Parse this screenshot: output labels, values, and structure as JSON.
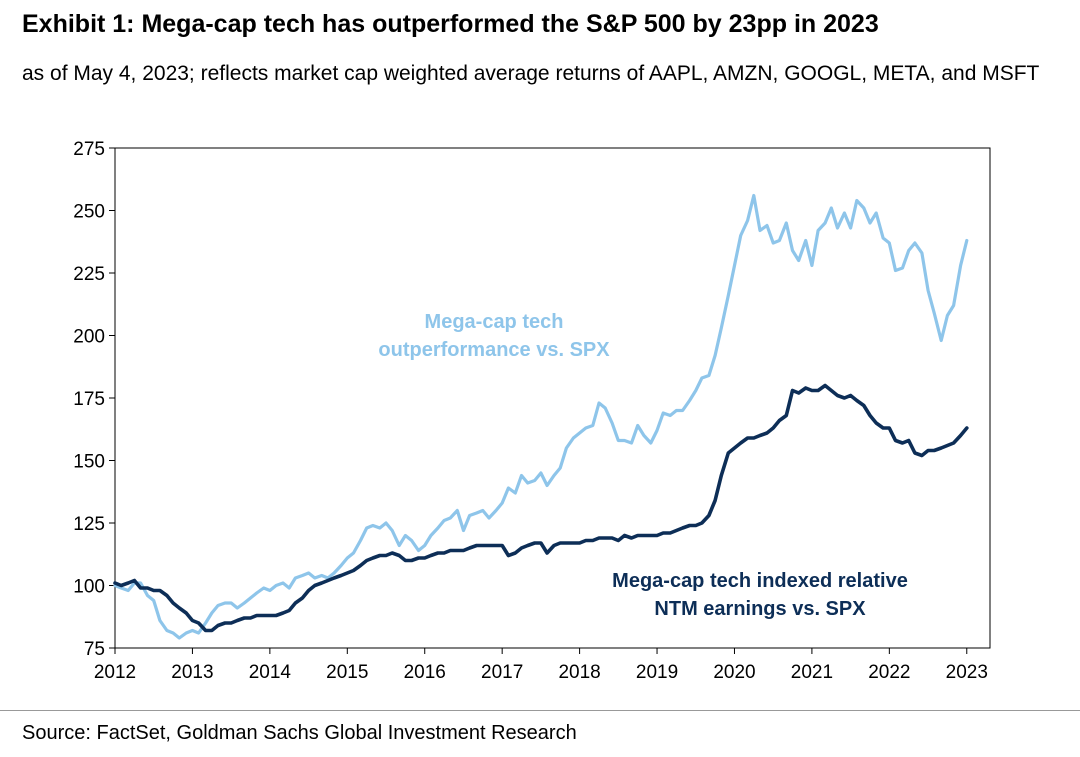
{
  "title": "Exhibit 1: Mega-cap tech has outperformed the S&P 500 by 23pp in 2023",
  "subtitle": "as of May 4, 2023; reflects market cap weighted average returns of AAPL, AMZN, GOOGL, META, and MSFT",
  "source": "Source: FactSet, Goldman Sachs Global Investment Research",
  "chart_data": {
    "type": "line",
    "xlim": [
      2012,
      2023.3
    ],
    "ylim": [
      75,
      275
    ],
    "x_ticks": [
      "2012",
      "2013",
      "2014",
      "2015",
      "2016",
      "2017",
      "2018",
      "2019",
      "2020",
      "2021",
      "2022",
      "2023"
    ],
    "y_ticks": [
      "75",
      "100",
      "125",
      "150",
      "175",
      "200",
      "225",
      "250",
      "275"
    ],
    "colors": {
      "light": "#8ec5ea",
      "dark": "#0d2e57"
    },
    "annotations": [
      {
        "lines": [
          "Mega-cap tech",
          "outperformance vs. SPX"
        ],
        "series": 0
      },
      {
        "lines": [
          "Mega-cap tech indexed relative",
          "NTM earnings vs. SPX"
        ],
        "series": 1
      }
    ],
    "series": [
      {
        "name": "Mega-cap tech outperformance vs. SPX",
        "x": [
          2012.0,
          2012.08,
          2012.17,
          2012.25,
          2012.33,
          2012.42,
          2012.5,
          2012.58,
          2012.67,
          2012.75,
          2012.83,
          2012.92,
          2013.0,
          2013.08,
          2013.17,
          2013.25,
          2013.33,
          2013.42,
          2013.5,
          2013.58,
          2013.67,
          2013.75,
          2013.83,
          2013.92,
          2014.0,
          2014.08,
          2014.17,
          2014.25,
          2014.33,
          2014.42,
          2014.5,
          2014.58,
          2014.67,
          2014.75,
          2014.83,
          2014.92,
          2015.0,
          2015.08,
          2015.17,
          2015.25,
          2015.33,
          2015.42,
          2015.5,
          2015.58,
          2015.67,
          2015.75,
          2015.83,
          2015.92,
          2016.0,
          2016.08,
          2016.17,
          2016.25,
          2016.33,
          2016.42,
          2016.5,
          2016.58,
          2016.67,
          2016.75,
          2016.83,
          2016.92,
          2017.0,
          2017.08,
          2017.17,
          2017.25,
          2017.33,
          2017.42,
          2017.5,
          2017.58,
          2017.67,
          2017.75,
          2017.83,
          2017.92,
          2018.0,
          2018.08,
          2018.17,
          2018.25,
          2018.33,
          2018.42,
          2018.5,
          2018.58,
          2018.67,
          2018.75,
          2018.83,
          2018.92,
          2019.0,
          2019.08,
          2019.17,
          2019.25,
          2019.33,
          2019.42,
          2019.5,
          2019.58,
          2019.67,
          2019.75,
          2019.83,
          2019.92,
          2020.0,
          2020.08,
          2020.17,
          2020.25,
          2020.33,
          2020.42,
          2020.5,
          2020.58,
          2020.67,
          2020.75,
          2020.83,
          2020.92,
          2021.0,
          2021.08,
          2021.17,
          2021.25,
          2021.33,
          2021.42,
          2021.5,
          2021.58,
          2021.67,
          2021.75,
          2021.83,
          2021.92,
          2022.0,
          2022.08,
          2022.17,
          2022.25,
          2022.33,
          2022.42,
          2022.5,
          2022.58,
          2022.67,
          2022.75,
          2022.83,
          2022.92,
          2023.0
        ],
        "values": [
          100,
          99,
          98,
          101,
          101,
          96,
          94,
          86,
          82,
          81,
          79,
          81,
          82,
          81,
          85,
          89,
          92,
          93,
          93,
          91,
          93,
          95,
          97,
          99,
          98,
          100,
          101,
          99,
          103,
          104,
          105,
          103,
          104,
          103,
          105,
          108,
          111,
          113,
          118,
          123,
          124,
          123,
          125,
          122,
          116,
          120,
          118,
          114,
          116,
          120,
          123,
          126,
          127,
          130,
          122,
          128,
          129,
          130,
          127,
          130,
          133,
          139,
          137,
          144,
          141,
          142,
          145,
          140,
          144,
          147,
          155,
          159,
          161,
          163,
          164,
          173,
          171,
          165,
          158,
          158,
          157,
          164,
          160,
          157,
          162,
          169,
          168,
          170,
          170,
          174,
          178,
          183,
          184,
          192,
          203,
          216,
          228,
          240,
          246,
          256,
          242,
          244,
          237,
          238,
          245,
          234,
          230,
          238,
          228,
          242,
          245,
          251,
          243,
          249,
          243,
          254,
          251,
          245,
          249,
          239,
          237,
          226,
          227,
          234,
          237,
          233,
          218,
          209,
          198,
          208,
          212,
          228,
          238
        ]
      },
      {
        "name": "Mega-cap tech indexed relative NTM earnings vs. SPX",
        "x": [
          2012.0,
          2012.08,
          2012.17,
          2012.25,
          2012.33,
          2012.42,
          2012.5,
          2012.58,
          2012.67,
          2012.75,
          2012.83,
          2012.92,
          2013.0,
          2013.08,
          2013.17,
          2013.25,
          2013.33,
          2013.42,
          2013.5,
          2013.58,
          2013.67,
          2013.75,
          2013.83,
          2013.92,
          2014.0,
          2014.08,
          2014.17,
          2014.25,
          2014.33,
          2014.42,
          2014.5,
          2014.58,
          2014.67,
          2014.75,
          2014.83,
          2014.92,
          2015.0,
          2015.08,
          2015.17,
          2015.25,
          2015.33,
          2015.42,
          2015.5,
          2015.58,
          2015.67,
          2015.75,
          2015.83,
          2015.92,
          2016.0,
          2016.08,
          2016.17,
          2016.25,
          2016.33,
          2016.42,
          2016.5,
          2016.58,
          2016.67,
          2016.75,
          2016.83,
          2016.92,
          2017.0,
          2017.08,
          2017.17,
          2017.25,
          2017.33,
          2017.42,
          2017.5,
          2017.58,
          2017.67,
          2017.75,
          2017.83,
          2017.92,
          2018.0,
          2018.08,
          2018.17,
          2018.25,
          2018.33,
          2018.42,
          2018.5,
          2018.58,
          2018.67,
          2018.75,
          2018.83,
          2018.92,
          2019.0,
          2019.08,
          2019.17,
          2019.25,
          2019.33,
          2019.42,
          2019.5,
          2019.58,
          2019.67,
          2019.75,
          2019.83,
          2019.92,
          2020.0,
          2020.08,
          2020.17,
          2020.25,
          2020.33,
          2020.42,
          2020.5,
          2020.58,
          2020.67,
          2020.75,
          2020.83,
          2020.92,
          2021.0,
          2021.08,
          2021.17,
          2021.25,
          2021.33,
          2021.42,
          2021.5,
          2021.58,
          2021.67,
          2021.75,
          2021.83,
          2021.92,
          2022.0,
          2022.08,
          2022.17,
          2022.25,
          2022.33,
          2022.42,
          2022.5,
          2022.58,
          2022.67,
          2022.75,
          2022.83,
          2022.92,
          2023.0
        ],
        "values": [
          101,
          100,
          101,
          102,
          99,
          99,
          98,
          98,
          96,
          93,
          91,
          89,
          86,
          85,
          82,
          82,
          84,
          85,
          85,
          86,
          87,
          87,
          88,
          88,
          88,
          88,
          89,
          90,
          93,
          95,
          98,
          100,
          101,
          102,
          103,
          104,
          105,
          106,
          108,
          110,
          111,
          112,
          112,
          113,
          112,
          110,
          110,
          111,
          111,
          112,
          113,
          113,
          114,
          114,
          114,
          115,
          116,
          116,
          116,
          116,
          116,
          112,
          113,
          115,
          116,
          117,
          117,
          113,
          116,
          117,
          117,
          117,
          117,
          118,
          118,
          119,
          119,
          119,
          118,
          120,
          119,
          120,
          120,
          120,
          120,
          121,
          121,
          122,
          123,
          124,
          124,
          125,
          128,
          134,
          144,
          153,
          155,
          157,
          159,
          159,
          160,
          161,
          163,
          166,
          168,
          178,
          177,
          179,
          178,
          178,
          180,
          178,
          176,
          175,
          176,
          174,
          172,
          168,
          165,
          163,
          163,
          158,
          157,
          158,
          153,
          152,
          154,
          154,
          155,
          156,
          157,
          160,
          163
        ]
      }
    ]
  }
}
